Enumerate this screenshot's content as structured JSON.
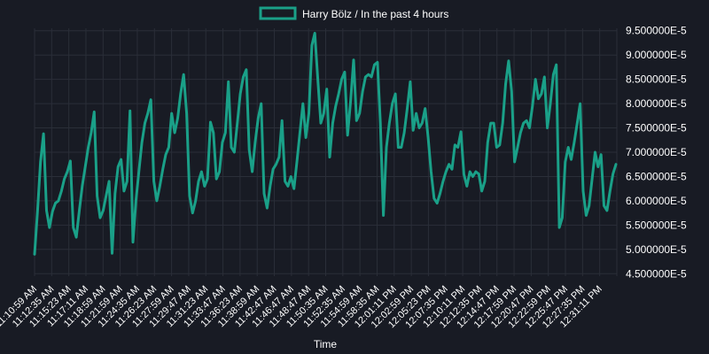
{
  "chart_data": {
    "type": "line",
    "legend_position": "top-center",
    "grid": true,
    "xlabel": "Time",
    "ylabel": "",
    "ylim": [
      4.45e-05,
      9.55e-05
    ],
    "y_ticks": [
      "9.500000E-5",
      "9.000000E-5",
      "8.500000E-5",
      "8.000000E-5",
      "7.500000E-5",
      "7.000000E-5",
      "6.500000E-5",
      "6.000000E-5",
      "5.500000E-5",
      "5.000000E-5",
      "4.500000E-5"
    ],
    "x_ticks": [
      "11:10:59 AM",
      "11:12:35 AM",
      "11:15:23 AM",
      "11:17:11 AM",
      "11:18:59 AM",
      "11:21:59 AM",
      "11:24:35 AM",
      "11:26:23 AM",
      "11:27:59 AM",
      "11:29:47 AM",
      "11:31:23 AM",
      "11:33:47 AM",
      "11:36:23 AM",
      "11:38:59 AM",
      "11:42:47 AM",
      "11:46:47 AM",
      "11:48:47 AM",
      "11:50:35 AM",
      "11:52:35 AM",
      "11:54:59 AM",
      "11:58:35 AM",
      "12:01:11 PM",
      "12:02:59 PM",
      "12:05:23 PM",
      "12:07:35 PM",
      "12:10:11 PM",
      "12:12:35 PM",
      "12:14:47 PM",
      "12:17:59 PM",
      "12:20:47 PM",
      "12:22:59 PM",
      "12:25:47 PM",
      "12:27:35 PM",
      "12:31:11 PM"
    ],
    "series": [
      {
        "name": "Harry Bölz / In the past 4 hours",
        "color": "#1aa088",
        "values": [
          4.9e-05,
          5.8e-05,
          6.8e-05,
          7.38e-05,
          5.8e-05,
          5.45e-05,
          5.78e-05,
          5.95e-05,
          6e-05,
          6.2e-05,
          6.45e-05,
          6.6e-05,
          6.82e-05,
          5.45e-05,
          5.25e-05,
          5.8e-05,
          6.3e-05,
          6.7e-05,
          7.1e-05,
          7.4e-05,
          7.83e-05,
          6.1e-05,
          5.65e-05,
          5.8e-05,
          6.1e-05,
          6.4e-05,
          4.92e-05,
          6.15e-05,
          6.7e-05,
          6.85e-05,
          6.2e-05,
          6.4e-05,
          7.85e-05,
          5.15e-05,
          6e-05,
          6.6e-05,
          7.2e-05,
          7.6e-05,
          7.8e-05,
          8.08e-05,
          6.4e-05,
          6e-05,
          6.3e-05,
          6.65e-05,
          6.95e-05,
          7.1e-05,
          7.8e-05,
          7.4e-05,
          7.7e-05,
          8.2e-05,
          8.6e-05,
          7.8e-05,
          6.1e-05,
          5.75e-05,
          6e-05,
          6.4e-05,
          6.6e-05,
          6.3e-05,
          6.45e-05,
          7.62e-05,
          7.4e-05,
          6.45e-05,
          6.6e-05,
          7.2e-05,
          7.4e-05,
          8.45e-05,
          7.1e-05,
          7e-05,
          7.6e-05,
          8.2e-05,
          8.55e-05,
          8.7e-05,
          7.05e-05,
          6.6e-05,
          7.2e-05,
          7.7e-05,
          8e-05,
          6.15e-05,
          5.85e-05,
          6.3e-05,
          6.65e-05,
          6.75e-05,
          6.9e-05,
          7.65e-05,
          6.4e-05,
          6.3e-05,
          6.5e-05,
          6.25e-05,
          6.8e-05,
          7.4e-05,
          8e-05,
          7.3e-05,
          7.8e-05,
          9.2e-05,
          9.45e-05,
          8.5e-05,
          7.6e-05,
          7.8e-05,
          8.3e-05,
          6.9e-05,
          7.6e-05,
          7.95e-05,
          8.2e-05,
          8.5e-05,
          8.65e-05,
          7.35e-05,
          8.05e-05,
          8.9e-05,
          7.65e-05,
          7.8e-05,
          8.25e-05,
          8.55e-05,
          8.6e-05,
          8.55e-05,
          8.8e-05,
          8.85e-05,
          7.6e-05,
          5.7e-05,
          7.1e-05,
          7.6e-05,
          8e-05,
          8.2e-05,
          7.1e-05,
          7.1e-05,
          7.4e-05,
          7.9e-05,
          8.45e-05,
          7.45e-05,
          7.8e-05,
          7.5e-05,
          7.6e-05,
          7.9e-05,
          7.3e-05,
          6.6e-05,
          6.05e-05,
          5.95e-05,
          6.15e-05,
          6.4e-05,
          6.6e-05,
          6.75e-05,
          6.65e-05,
          7.15e-05,
          7.1e-05,
          7.42e-05,
          6.55e-05,
          6.3e-05,
          6.6e-05,
          6.5e-05,
          6.6e-05,
          6.55e-05,
          6.2e-05,
          6.4e-05,
          7.2e-05,
          7.6e-05,
          7.6e-05,
          7.1e-05,
          7.15e-05,
          7.6e-05,
          8.4e-05,
          8.88e-05,
          8.25e-05,
          6.8e-05,
          7.1e-05,
          7.4e-05,
          7.6e-05,
          7.65e-05,
          7.5e-05,
          7.95e-05,
          8.5e-05,
          8.1e-05,
          8.2e-05,
          8.55e-05,
          7.5e-05,
          8e-05,
          8.6e-05,
          8.8e-05,
          5.45e-05,
          5.65e-05,
          6.8e-05,
          7.1e-05,
          6.85e-05,
          7.2e-05,
          7.6e-05,
          8e-05,
          6.2e-05,
          5.7e-05,
          5.9e-05,
          6.45e-05,
          7e-05,
          6.7e-05,
          6.95e-05,
          5.9e-05,
          5.8e-05,
          6.2e-05,
          6.55e-05,
          6.75e-05
        ]
      }
    ]
  }
}
